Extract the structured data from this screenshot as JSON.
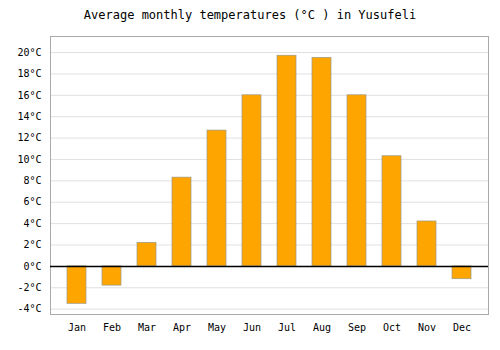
{
  "chart_data": {
    "type": "bar",
    "title": "Average monthly temperatures (°C ) in Yusufeli",
    "categories": [
      "Jan",
      "Feb",
      "Mar",
      "Apr",
      "May",
      "Jun",
      "Jul",
      "Aug",
      "Sep",
      "Oct",
      "Nov",
      "Dec"
    ],
    "values": [
      -3.5,
      -1.8,
      2.2,
      8.3,
      12.7,
      16.0,
      19.7,
      19.5,
      16.0,
      10.3,
      4.2,
      -1.2
    ],
    "color": "#FFA500",
    "ylim": [
      -4.5,
      21.5
    ],
    "yticks": [
      {
        "value": -4,
        "label": "-4°C"
      },
      {
        "value": -2,
        "label": "-2°C"
      },
      {
        "value": 0,
        "label": "0°C"
      },
      {
        "value": 2,
        "label": "2°C"
      },
      {
        "value": 4,
        "label": "4°C"
      },
      {
        "value": 6,
        "label": "6°C"
      },
      {
        "value": 8,
        "label": "8°C"
      },
      {
        "value": 10,
        "label": "10°C"
      },
      {
        "value": 12,
        "label": "12°C"
      },
      {
        "value": 14,
        "label": "14°C"
      },
      {
        "value": 16,
        "label": "16°C"
      },
      {
        "value": 18,
        "label": "18°C"
      },
      {
        "value": 20,
        "label": "20°C"
      }
    ],
    "grid": true
  }
}
